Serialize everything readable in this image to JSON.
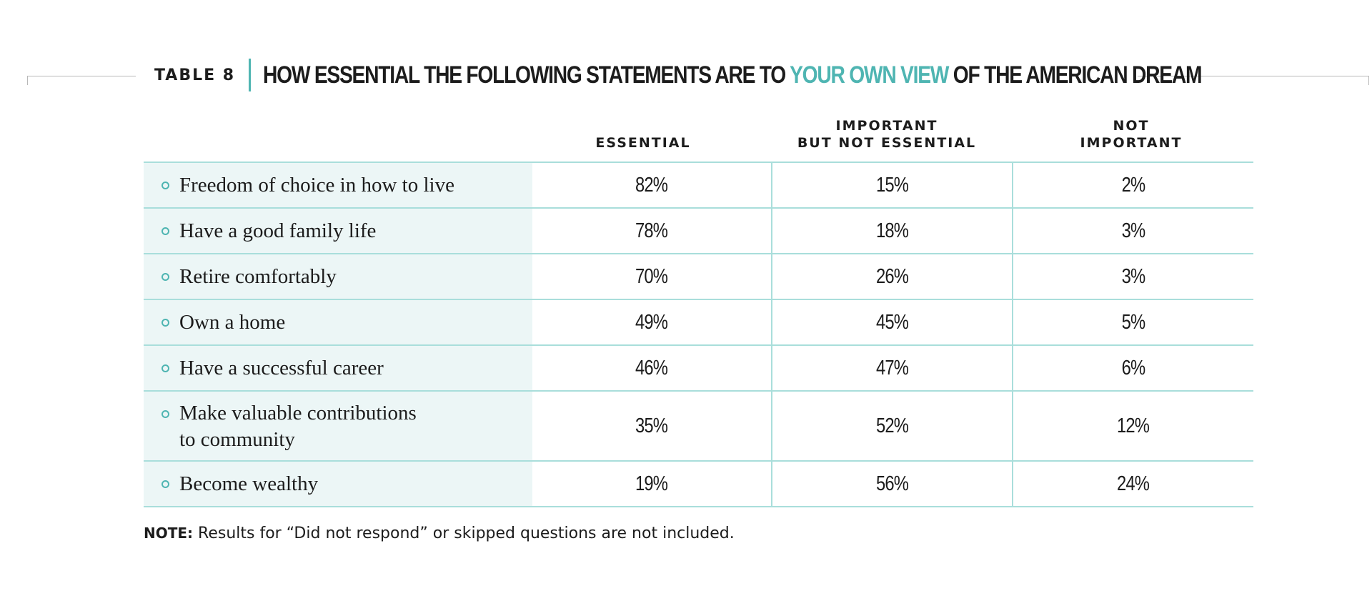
{
  "title": {
    "table_label": "TABLE 8",
    "text_before": "HOW ESSENTIAL THE FOLLOWING STATEMENTS ARE TO ",
    "text_accent": "YOUR OWN VIEW",
    "text_after": " OF THE AMERICAN DREAM"
  },
  "colors": {
    "accent": "#4fb5b2",
    "row_label_background": "#ecf6f6",
    "grid_line": "#a9dedb"
  },
  "icons": {
    "row_bullet": "hollow-circle-bullet-icon"
  },
  "chart_data": {
    "type": "table",
    "columns": [
      {
        "lines": [
          "ESSENTIAL"
        ]
      },
      {
        "lines": [
          "IMPORTANT",
          "BUT NOT ESSENTIAL"
        ]
      },
      {
        "lines": [
          "NOT",
          "IMPORTANT"
        ]
      }
    ],
    "rows": [
      {
        "label_lines": [
          "Freedom of choice in how to live"
        ],
        "values": [
          "82%",
          "15%",
          "2%"
        ]
      },
      {
        "label_lines": [
          "Have a good family life"
        ],
        "values": [
          "78%",
          "18%",
          "3%"
        ]
      },
      {
        "label_lines": [
          "Retire comfortably"
        ],
        "values": [
          "70%",
          "26%",
          "3%"
        ]
      },
      {
        "label_lines": [
          "Own a home"
        ],
        "values": [
          "49%",
          "45%",
          "5%"
        ]
      },
      {
        "label_lines": [
          "Have a successful career"
        ],
        "values": [
          "46%",
          "47%",
          "6%"
        ]
      },
      {
        "label_lines": [
          "Make valuable contributions",
          "to community"
        ],
        "values": [
          "35%",
          "52%",
          "12%"
        ]
      },
      {
        "label_lines": [
          "Become wealthy"
        ],
        "values": [
          "19%",
          "56%",
          "24%"
        ]
      }
    ]
  },
  "note": {
    "label": "NOTE:",
    "text": " Results for “Did not respond” or skipped questions are not included."
  }
}
